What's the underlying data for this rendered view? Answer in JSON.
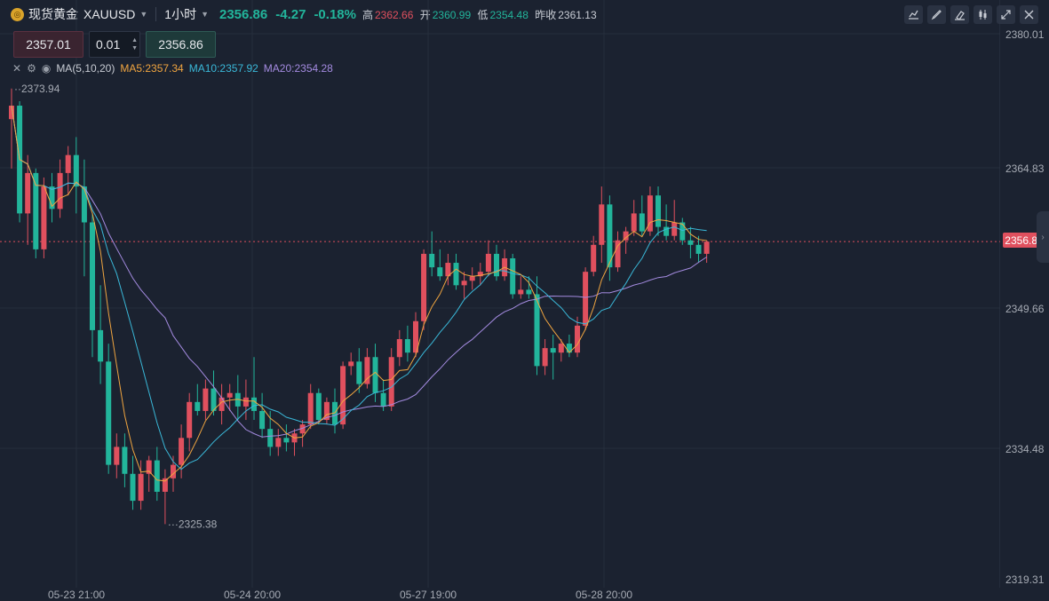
{
  "header": {
    "name": "现货黄金",
    "code": "XAUUSD",
    "interval": "1小时",
    "last": "2356.86",
    "change": "-4.27",
    "change_pct": "-0.18%",
    "high_label": "高",
    "high": "2362.66",
    "open_label": "开",
    "open": "2360.99",
    "low_label": "低",
    "low": "2354.48",
    "prev_label": "昨收",
    "prev_close": "2361.13"
  },
  "toolbar_icons": [
    "chart-settings-icon",
    "draw-icon",
    "eraser-icon",
    "candle-type-icon",
    "fullscreen-icon",
    "close-icon"
  ],
  "order": {
    "sell_price": "2357.01",
    "quantity": "0.01",
    "buy_price": "2356.86"
  },
  "legend": {
    "indicator": "MA(5,10,20)",
    "ma5": "MA5:2357.34",
    "ma10": "MA10:2357.92",
    "ma20": "MA20:2354.28"
  },
  "colors": {
    "up": "#e0505e",
    "down": "#22b59b",
    "ma5": "#f0a540",
    "ma10": "#3ab8d8",
    "ma20": "#a48be0",
    "background": "#1b2230"
  },
  "price_axis": [
    "2380.01",
    "2364.83",
    "2349.66",
    "2334.48",
    "2319.31"
  ],
  "current_price_tag": "2356.86",
  "time_axis": [
    "05-23 21:00",
    "05-24 20:00",
    "05-27 19:00",
    "05-28 20:00"
  ],
  "markers": {
    "high": "2373.94",
    "low": "2325.38"
  },
  "chart_data": {
    "type": "candlestick",
    "ylim": [
      2319.31,
      2380.01
    ],
    "candles": [
      [
        2370.5,
        2373.9,
        2365.0,
        2372.0
      ],
      [
        2372.0,
        2372.5,
        2359.0,
        2360.0
      ],
      [
        2360.0,
        2366.5,
        2356.5,
        2364.5
      ],
      [
        2364.5,
        2365.0,
        2355.0,
        2356.0
      ],
      [
        2356.0,
        2364.0,
        2355.0,
        2363.0
      ],
      [
        2363.0,
        2364.5,
        2359.0,
        2360.5
      ],
      [
        2360.5,
        2366.0,
        2359.5,
        2364.5
      ],
      [
        2364.5,
        2367.5,
        2362.0,
        2366.5
      ],
      [
        2366.5,
        2368.5,
        2360.0,
        2363.0
      ],
      [
        2363.0,
        2366.0,
        2353.0,
        2359.0
      ],
      [
        2359.0,
        2360.0,
        2344.0,
        2347.0
      ],
      [
        2347.0,
        2352.0,
        2341.0,
        2343.5
      ],
      [
        2343.5,
        2345.5,
        2331.0,
        2332.0
      ],
      [
        2332.0,
        2335.5,
        2330.5,
        2334.0
      ],
      [
        2334.0,
        2335.5,
        2329.5,
        2331.0
      ],
      [
        2331.0,
        2333.0,
        2327.0,
        2328.0
      ],
      [
        2328.0,
        2332.5,
        2327.0,
        2331.0
      ],
      [
        2331.0,
        2333.0,
        2329.0,
        2332.5
      ],
      [
        2332.5,
        2334.0,
        2328.0,
        2329.0
      ],
      [
        2329.0,
        2331.5,
        2325.4,
        2330.5
      ],
      [
        2330.5,
        2333.0,
        2329.0,
        2332.0
      ],
      [
        2332.0,
        2336.5,
        2330.5,
        2335.0
      ],
      [
        2335.0,
        2340.0,
        2333.5,
        2339.0
      ],
      [
        2339.0,
        2341.0,
        2337.5,
        2338.0
      ],
      [
        2338.0,
        2341.5,
        2337.0,
        2340.5
      ],
      [
        2340.5,
        2342.5,
        2337.5,
        2338.0
      ],
      [
        2338.0,
        2341.0,
        2336.5,
        2339.5
      ],
      [
        2339.5,
        2341.0,
        2338.0,
        2340.0
      ],
      [
        2340.0,
        2342.0,
        2337.0,
        2338.5
      ],
      [
        2338.5,
        2341.5,
        2337.0,
        2339.5
      ],
      [
        2339.5,
        2344.0,
        2337.0,
        2338.0
      ],
      [
        2338.0,
        2340.0,
        2335.0,
        2336.0
      ],
      [
        2336.0,
        2338.0,
        2333.0,
        2334.0
      ],
      [
        2334.0,
        2336.0,
        2333.0,
        2335.0
      ],
      [
        2335.0,
        2336.5,
        2333.5,
        2334.5
      ],
      [
        2334.5,
        2336.0,
        2333.0,
        2335.5
      ],
      [
        2335.5,
        2337.0,
        2334.0,
        2336.5
      ],
      [
        2336.5,
        2341.0,
        2336.0,
        2340.0
      ],
      [
        2340.0,
        2340.5,
        2336.5,
        2337.0
      ],
      [
        2337.0,
        2339.5,
        2336.5,
        2339.0
      ],
      [
        2339.0,
        2340.5,
        2335.5,
        2336.5
      ],
      [
        2336.5,
        2343.5,
        2336.0,
        2343.0
      ],
      [
        2343.0,
        2344.5,
        2342.0,
        2343.5
      ],
      [
        2343.5,
        2345.0,
        2340.0,
        2341.0
      ],
      [
        2341.0,
        2345.0,
        2340.5,
        2344.0
      ],
      [
        2344.0,
        2345.5,
        2339.0,
        2340.0
      ],
      [
        2340.0,
        2341.5,
        2338.0,
        2338.5
      ],
      [
        2338.5,
        2345.0,
        2338.0,
        2344.0
      ],
      [
        2344.0,
        2347.0,
        2343.0,
        2346.0
      ],
      [
        2346.0,
        2347.5,
        2343.5,
        2344.5
      ],
      [
        2344.5,
        2349.0,
        2344.0,
        2348.0
      ],
      [
        2348.0,
        2356.0,
        2347.0,
        2355.5
      ],
      [
        2355.5,
        2358.0,
        2353.0,
        2354.0
      ],
      [
        2354.0,
        2356.0,
        2352.5,
        2353.0
      ],
      [
        2353.0,
        2355.5,
        2352.0,
        2354.5
      ],
      [
        2354.5,
        2355.5,
        2351.5,
        2352.0
      ],
      [
        2352.0,
        2353.5,
        2350.5,
        2352.5
      ],
      [
        2352.5,
        2354.0,
        2351.5,
        2353.0
      ],
      [
        2353.0,
        2354.5,
        2352.0,
        2353.5
      ],
      [
        2353.5,
        2357.0,
        2353.0,
        2355.5
      ],
      [
        2355.5,
        2356.5,
        2352.5,
        2353.0
      ],
      [
        2353.0,
        2356.0,
        2352.5,
        2355.0
      ],
      [
        2355.0,
        2355.5,
        2350.5,
        2351.0
      ],
      [
        2351.0,
        2353.0,
        2350.5,
        2351.5
      ],
      [
        2351.5,
        2353.0,
        2350.5,
        2351.0
      ],
      [
        2351.0,
        2353.0,
        2342.0,
        2343.0
      ],
      [
        2343.0,
        2346.0,
        2342.0,
        2345.0
      ],
      [
        2345.0,
        2346.5,
        2341.5,
        2344.5
      ],
      [
        2344.5,
        2346.0,
        2343.5,
        2345.5
      ],
      [
        2345.5,
        2346.5,
        2344.0,
        2344.5
      ],
      [
        2344.5,
        2348.5,
        2344.0,
        2347.5
      ],
      [
        2347.5,
        2354.0,
        2347.0,
        2353.5
      ],
      [
        2353.5,
        2357.5,
        2353.0,
        2356.5
      ],
      [
        2356.5,
        2363.0,
        2354.5,
        2361.0
      ],
      [
        2361.0,
        2362.0,
        2352.5,
        2354.0
      ],
      [
        2354.0,
        2358.0,
        2353.5,
        2357.0
      ],
      [
        2357.0,
        2358.5,
        2355.5,
        2358.0
      ],
      [
        2358.0,
        2361.5,
        2357.5,
        2360.0
      ],
      [
        2360.0,
        2362.0,
        2357.5,
        2358.0
      ],
      [
        2358.0,
        2363.0,
        2357.5,
        2362.0
      ],
      [
        2362.0,
        2363.0,
        2357.5,
        2358.5
      ],
      [
        2358.5,
        2361.0,
        2357.0,
        2357.5
      ],
      [
        2357.5,
        2361.5,
        2357.0,
        2359.0
      ],
      [
        2359.0,
        2359.5,
        2356.5,
        2357.0
      ],
      [
        2357.0,
        2358.5,
        2355.0,
        2356.5
      ],
      [
        2356.5,
        2357.5,
        2354.5,
        2355.5
      ],
      [
        2355.5,
        2357.0,
        2354.5,
        2356.86
      ]
    ]
  }
}
